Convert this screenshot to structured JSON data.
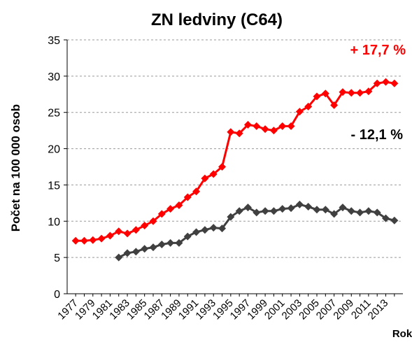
{
  "chart_data": {
    "type": "line",
    "title": "ZN ledviny (C64)",
    "y_label": "Počet na 100 000 osob",
    "x_label": "Rok",
    "categories": [
      "1977",
      null,
      "1979",
      null,
      "1981",
      null,
      "1983",
      null,
      "1985",
      null,
      "1987",
      null,
      "1989",
      null,
      "1991",
      null,
      "1993",
      null,
      "1995",
      null,
      "1997",
      null,
      "1999",
      null,
      "2001",
      null,
      "2003",
      null,
      "2005",
      null,
      "2007",
      null,
      "2009",
      null,
      "2011",
      null,
      "2013",
      null
    ],
    "series": [
      {
        "color": "#ff0000",
        "values": [
          7.3,
          7.3,
          7.4,
          7.6,
          8.0,
          8.6,
          8.3,
          8.8,
          9.4,
          10.0,
          11.0,
          11.7,
          12.2,
          13.3,
          14.1,
          15.9,
          16.5,
          17.5,
          22.3,
          22.1,
          23.3,
          23.1,
          22.7,
          22.5,
          23.1,
          23.1,
          25.1,
          25.8,
          27.2,
          27.6,
          26.0,
          27.8,
          27.7,
          27.7,
          27.9,
          29.0,
          29.2,
          29.0
        ]
      },
      {
        "color": "#404040",
        "values": [
          null,
          null,
          null,
          null,
          null,
          5.0,
          5.6,
          5.8,
          6.2,
          6.4,
          6.8,
          7.0,
          7.0,
          7.9,
          8.5,
          8.8,
          9.1,
          9.0,
          10.6,
          11.4,
          11.9,
          11.2,
          11.4,
          11.4,
          11.7,
          11.8,
          12.3,
          12.0,
          11.6,
          11.6,
          11.0,
          11.9,
          11.4,
          11.2,
          11.4,
          11.2,
          10.4,
          10.1
        ]
      }
    ],
    "annotations": [
      {
        "text": "+ 17,7 %",
        "color": "#ff0000"
      },
      {
        "text": "- 12,1 %",
        "color": "#000000"
      }
    ],
    "ylim": [
      0,
      35
    ],
    "yticks": [
      0,
      5,
      10,
      15,
      20,
      25,
      30,
      35
    ],
    "grid": true
  }
}
